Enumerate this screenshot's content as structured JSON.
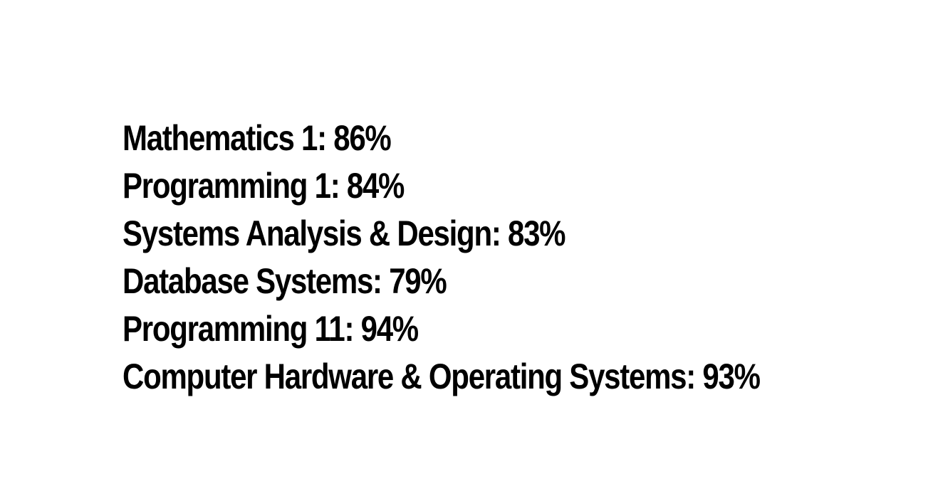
{
  "results": [
    {
      "subject": "Mathematics 1",
      "grade": "86%"
    },
    {
      "subject": "Programming 1",
      "grade": "84%"
    },
    {
      "subject": "Systems Analysis & Design",
      "grade": "83%"
    },
    {
      "subject": "Database Systems",
      "grade": "79%"
    },
    {
      "subject": "Programming 11",
      "grade": "94%"
    },
    {
      "subject": "Computer Hardware & Operating Systems",
      "grade": "93%"
    }
  ],
  "colors": {
    "text": "#000000",
    "background": "#ffffff"
  }
}
